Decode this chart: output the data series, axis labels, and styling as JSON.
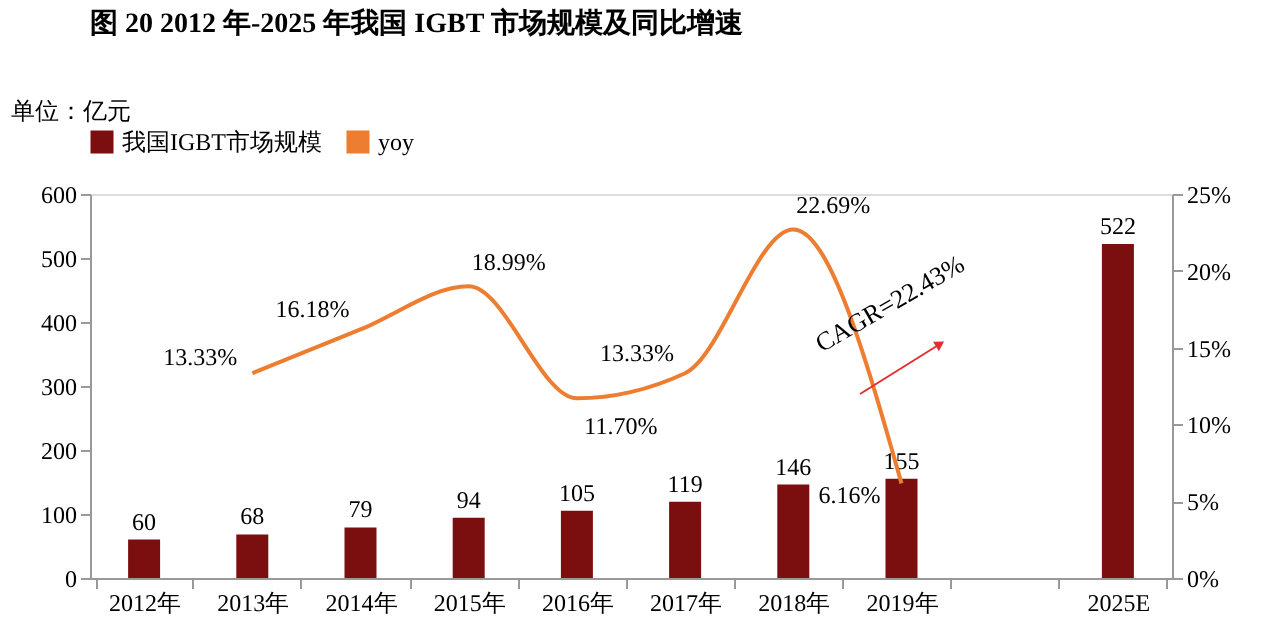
{
  "chart_data": {
    "type": "bar",
    "title": "图 20 2012 年-2025 年我国 IGBT 市场规模及同比增速",
    "ylabel": "单位：亿元",
    "categories": [
      "2012年",
      "2013年",
      "2014年",
      "2015年",
      "2016年",
      "2017年",
      "2018年",
      "2019年",
      null,
      "2025E"
    ],
    "series": [
      {
        "name": "我国IGBT市场规模",
        "color": "#7b0f10",
        "values": [
          60,
          68,
          79,
          94,
          105,
          119,
          146,
          155,
          null,
          522
        ],
        "data_labels": true
      },
      {
        "name": "yoy",
        "type": "line",
        "axis": "y2",
        "color": "#ed7d31",
        "values": [
          null,
          13.33,
          16.18,
          18.99,
          11.7,
          13.33,
          22.69,
          6.16,
          null,
          null
        ],
        "value_labels": [
          null,
          "13.33%",
          "16.18%",
          "18.99%",
          "11.70%",
          "13.33%",
          "22.69%",
          "6.16%",
          null,
          null
        ]
      }
    ],
    "ylim": [
      0,
      600
    ],
    "yticks": [
      0,
      100,
      200,
      300,
      400,
      500,
      600
    ],
    "y2lim": [
      0,
      25
    ],
    "y2ticks": [
      {
        "value": 0,
        "label": "0%"
      },
      {
        "value": 5,
        "label": "5%"
      },
      {
        "value": 10,
        "label": "10%"
      },
      {
        "value": 15,
        "label": "15%"
      },
      {
        "value": 20,
        "label": "20%"
      },
      {
        "value": 25,
        "label": "25%"
      }
    ],
    "annotations": [
      "CAGR=22.43%"
    ],
    "grid": false,
    "legend": "top",
    "marker": "none",
    "line_style": "solid"
  }
}
